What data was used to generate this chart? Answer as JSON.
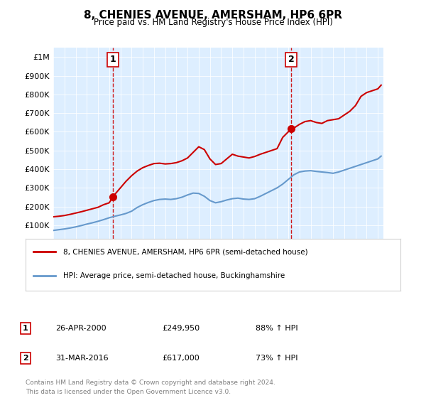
{
  "title": "8, CHENIES AVENUE, AMERSHAM, HP6 6PR",
  "subtitle": "Price paid vs. HM Land Registry's House Price Index (HPI)",
  "legend_line1": "8, CHENIES AVENUE, AMERSHAM, HP6 6PR (semi-detached house)",
  "legend_line2": "HPI: Average price, semi-detached house, Buckinghamshire",
  "footer": "Contains HM Land Registry data © Crown copyright and database right 2024.\nThis data is licensed under the Open Government Licence v3.0.",
  "sale1_date": "26-APR-2000",
  "sale1_price": "£249,950",
  "sale1_hpi": "88% ↑ HPI",
  "sale1_year": 2000.32,
  "sale1_value": 249950,
  "sale2_date": "31-MAR-2016",
  "sale2_price": "£617,000",
  "sale2_hpi": "73% ↑ HPI",
  "sale2_year": 2016.25,
  "sale2_value": 617000,
  "red_color": "#cc0000",
  "blue_color": "#6699cc",
  "bg_color": "#ddeeff",
  "vline_color": "#cc0000",
  "xlim_left": 1995.0,
  "xlim_right": 2024.5,
  "ylim_bottom": 0,
  "ylim_top": 1050000,
  "red_x": [
    1995.0,
    1995.5,
    1996.0,
    1996.5,
    1997.0,
    1997.5,
    1998.0,
    1998.5,
    1999.0,
    1999.5,
    2000.0,
    2000.32,
    2000.5,
    2001.0,
    2001.5,
    2002.0,
    2002.5,
    2003.0,
    2003.5,
    2004.0,
    2004.5,
    2005.0,
    2005.5,
    2006.0,
    2006.5,
    2007.0,
    2007.5,
    2008.0,
    2008.5,
    2009.0,
    2009.5,
    2010.0,
    2010.5,
    2011.0,
    2011.5,
    2012.0,
    2012.5,
    2013.0,
    2013.5,
    2014.0,
    2014.5,
    2015.0,
    2015.5,
    2016.0,
    2016.25,
    2016.5,
    2017.0,
    2017.5,
    2018.0,
    2018.5,
    2019.0,
    2019.5,
    2020.0,
    2020.5,
    2021.0,
    2021.5,
    2022.0,
    2022.5,
    2023.0,
    2023.5,
    2024.0,
    2024.3
  ],
  "red_y": [
    145000,
    148000,
    152000,
    158000,
    165000,
    172000,
    180000,
    188000,
    196000,
    210000,
    220000,
    249950,
    265000,
    300000,
    335000,
    365000,
    390000,
    408000,
    420000,
    430000,
    432000,
    428000,
    430000,
    435000,
    445000,
    460000,
    490000,
    520000,
    505000,
    455000,
    425000,
    430000,
    455000,
    480000,
    470000,
    465000,
    460000,
    468000,
    480000,
    490000,
    500000,
    510000,
    570000,
    600000,
    617000,
    620000,
    640000,
    655000,
    660000,
    650000,
    645000,
    660000,
    665000,
    670000,
    690000,
    710000,
    740000,
    790000,
    810000,
    820000,
    830000,
    850000
  ],
  "blue_x": [
    1995.0,
    1995.5,
    1996.0,
    1996.5,
    1997.0,
    1997.5,
    1998.0,
    1998.5,
    1999.0,
    1999.5,
    2000.0,
    2000.5,
    2001.0,
    2001.5,
    2002.0,
    2002.5,
    2003.0,
    2003.5,
    2004.0,
    2004.5,
    2005.0,
    2005.5,
    2006.0,
    2006.5,
    2007.0,
    2007.5,
    2008.0,
    2008.5,
    2009.0,
    2009.5,
    2010.0,
    2010.5,
    2011.0,
    2011.5,
    2012.0,
    2012.5,
    2013.0,
    2013.5,
    2014.0,
    2014.5,
    2015.0,
    2015.5,
    2016.0,
    2016.5,
    2017.0,
    2017.5,
    2018.0,
    2018.5,
    2019.0,
    2019.5,
    2020.0,
    2020.5,
    2021.0,
    2021.5,
    2022.0,
    2022.5,
    2023.0,
    2023.5,
    2024.0,
    2024.3
  ],
  "blue_y": [
    72000,
    76000,
    80000,
    85000,
    91000,
    98000,
    106000,
    113000,
    121000,
    130000,
    140000,
    148000,
    155000,
    163000,
    175000,
    195000,
    210000,
    222000,
    232000,
    238000,
    240000,
    238000,
    242000,
    250000,
    262000,
    272000,
    270000,
    255000,
    232000,
    220000,
    226000,
    235000,
    242000,
    245000,
    240000,
    238000,
    242000,
    255000,
    270000,
    285000,
    300000,
    320000,
    345000,
    370000,
    385000,
    390000,
    392000,
    388000,
    385000,
    382000,
    378000,
    385000,
    395000,
    405000,
    415000,
    425000,
    435000,
    445000,
    455000,
    470000
  ]
}
